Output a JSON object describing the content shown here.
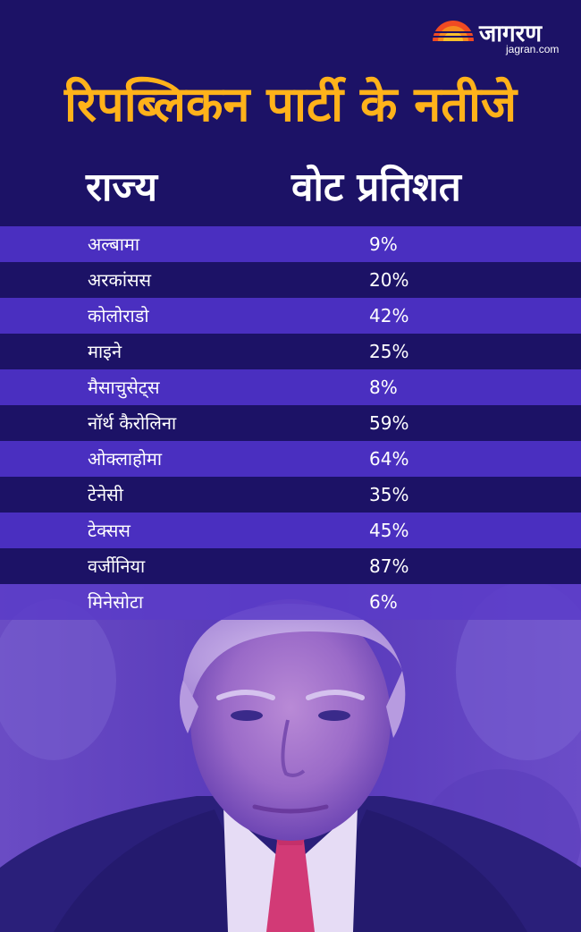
{
  "brand": {
    "logo_text": "जागरण",
    "domain": "jagran.com"
  },
  "title": "रिपब्लिकन पार्टी के नतीजे",
  "headers": {
    "state": "राज्य",
    "vote": "वोट प्रतिशत"
  },
  "colors": {
    "background": "#1c1266",
    "row_light": "#4a2fc0",
    "row_dark": "#1c1266",
    "title": "#ffb21a",
    "text": "#ffffff"
  },
  "chart_data": {
    "type": "table",
    "columns": [
      "राज्य",
      "वोट प्रतिशत"
    ],
    "rows": [
      {
        "state": "अल्बामा",
        "vote": "9%"
      },
      {
        "state": "अरकांसस",
        "vote": "20%"
      },
      {
        "state": "कोलोराडो",
        "vote": "42%"
      },
      {
        "state": "माइने",
        "vote": "25%"
      },
      {
        "state": "मैसाचुसेट्स",
        "vote": "8%"
      },
      {
        "state": "नॉर्थ कैरोलिना",
        "vote": "59%"
      },
      {
        "state": "ओक्लाहोमा",
        "vote": "64%"
      },
      {
        "state": "टेनेसी",
        "vote": "35%"
      },
      {
        "state": "टेक्सस",
        "vote": "45%"
      },
      {
        "state": "वर्जीनिया",
        "vote": "87%"
      },
      {
        "state": "मिनेसोटा",
        "vote": "6%"
      }
    ]
  }
}
